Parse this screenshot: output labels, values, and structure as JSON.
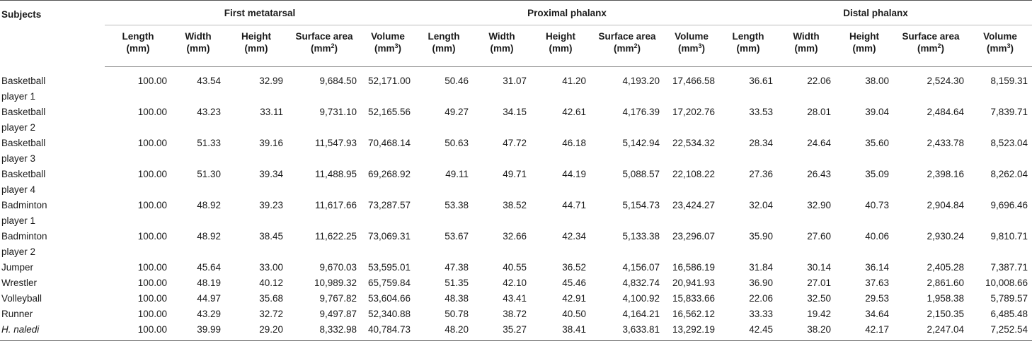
{
  "table": {
    "subjects_header": "Subjects",
    "groups": [
      "First metatarsal",
      "Proximal phalanx",
      "Distal phalanx"
    ],
    "subheaders": [
      {
        "line1": "Length",
        "line2": "(mm)",
        "sup": ""
      },
      {
        "line1": "Width",
        "line2": "(mm)",
        "sup": ""
      },
      {
        "line1": "Height",
        "line2": "(mm)",
        "sup": ""
      },
      {
        "line1": "Surface area",
        "line2": "(mm",
        "sup": "2"
      },
      {
        "line1": "Volume",
        "line2": "(mm",
        "sup": "3"
      }
    ],
    "rows": [
      {
        "name1": "Basketball",
        "name2": "player 1",
        "values": [
          "100.00",
          "43.54",
          "32.99",
          "9,684.50",
          "52,171.00",
          "50.46",
          "31.07",
          "41.20",
          "4,193.20",
          "17,466.58",
          "36.61",
          "22.06",
          "38.00",
          "2,524.30",
          "8,159.31"
        ]
      },
      {
        "name1": "Basketball",
        "name2": "player 2",
        "values": [
          "100.00",
          "43.23",
          "33.11",
          "9,731.10",
          "52,165.56",
          "49.27",
          "34.15",
          "42.61",
          "4,176.39",
          "17,202.76",
          "33.53",
          "28.01",
          "39.04",
          "2,484.64",
          "7,839.71"
        ]
      },
      {
        "name1": "Basketball",
        "name2": "player 3",
        "values": [
          "100.00",
          "51.33",
          "39.16",
          "11,547.93",
          "70,468.14",
          "50.63",
          "47.72",
          "46.18",
          "5,142.94",
          "22,534.32",
          "28.34",
          "24.64",
          "35.60",
          "2,433.78",
          "8,523.04"
        ]
      },
      {
        "name1": "Basketball",
        "name2": "player 4",
        "values": [
          "100.00",
          "51.30",
          "39.34",
          "11,488.95",
          "69,268.92",
          "49.11",
          "49.71",
          "44.19",
          "5,088.57",
          "22,108.22",
          "27.36",
          "26.43",
          "35.09",
          "2,398.16",
          "8,262.04"
        ]
      },
      {
        "name1": "Badminton",
        "name2": "player 1",
        "values": [
          "100.00",
          "48.92",
          "39.23",
          "11,617.66",
          "73,287.57",
          "53.38",
          "38.52",
          "44.71",
          "5,154.73",
          "23,424.27",
          "32.04",
          "32.90",
          "40.73",
          "2,904.84",
          "9,696.46"
        ]
      },
      {
        "name1": "Badminton",
        "name2": "player 2",
        "values": [
          "100.00",
          "48.92",
          "38.45",
          "11,622.25",
          "73,069.31",
          "53.67",
          "32.66",
          "42.34",
          "5,133.38",
          "23,296.07",
          "35.90",
          "27.60",
          "40.06",
          "2,930.24",
          "9,810.71"
        ]
      },
      {
        "name1": "Jumper",
        "name2": "",
        "values": [
          "100.00",
          "45.64",
          "33.00",
          "9,670.03",
          "53,595.01",
          "47.38",
          "40.55",
          "36.52",
          "4,156.07",
          "16,586.19",
          "31.84",
          "30.14",
          "36.14",
          "2,405.28",
          "7,387.71"
        ]
      },
      {
        "name1": "Wrestler",
        "name2": "",
        "values": [
          "100.00",
          "48.19",
          "40.12",
          "10,989.32",
          "65,759.84",
          "51.35",
          "42.10",
          "45.46",
          "4,832.74",
          "20,941.93",
          "36.90",
          "27.01",
          "37.63",
          "2,861.60",
          "10,008.66"
        ]
      },
      {
        "name1": "Volleyball",
        "name2": "",
        "values": [
          "100.00",
          "44.97",
          "35.68",
          "9,767.82",
          "53,604.66",
          "48.38",
          "43.41",
          "42.91",
          "4,100.92",
          "15,833.66",
          "22.06",
          "32.50",
          "29.53",
          "1,958.38",
          "5,789.57"
        ]
      },
      {
        "name1": "Runner",
        "name2": "",
        "values": [
          "100.00",
          "43.29",
          "32.72",
          "9,497.87",
          "52,340.88",
          "50.78",
          "38.72",
          "40.50",
          "4,164.21",
          "16,562.12",
          "33.33",
          "19.42",
          "34.64",
          "2,150.35",
          "6,485.48"
        ]
      },
      {
        "name1": "H. naledi",
        "name2": "",
        "italic": true,
        "values": [
          "100.00",
          "39.99",
          "29.20",
          "8,332.98",
          "40,784.73",
          "48.20",
          "35.27",
          "38.41",
          "3,633.81",
          "13,292.19",
          "42.45",
          "38.20",
          "42.17",
          "2,247.04",
          "7,252.54"
        ]
      }
    ]
  }
}
